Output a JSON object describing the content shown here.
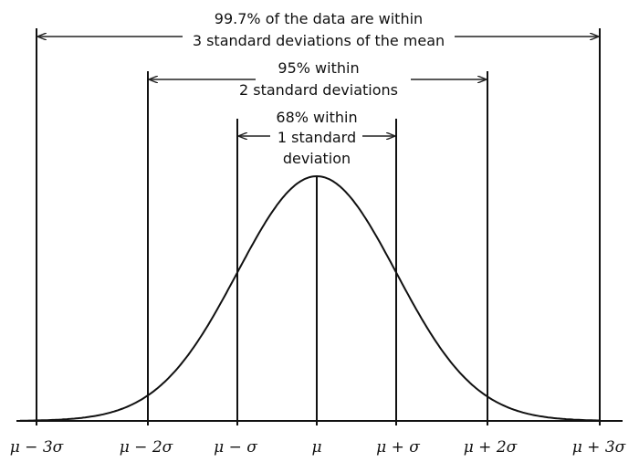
{
  "annotations": {
    "three_sigma": [
      "99.7% of the data are within",
      "3 standard deviations of the mean"
    ],
    "two_sigma": [
      "95% within",
      "2 standard deviations"
    ],
    "one_sigma": [
      "68% within",
      "1 standard",
      "deviation"
    ]
  },
  "ticks": [
    "μ − 3σ",
    "μ − 2σ",
    "μ − σ",
    "μ",
    "μ + σ",
    "μ + 2σ",
    "μ + 3σ"
  ],
  "colors": {
    "line": "#111111",
    "background": "#ffffff"
  }
}
